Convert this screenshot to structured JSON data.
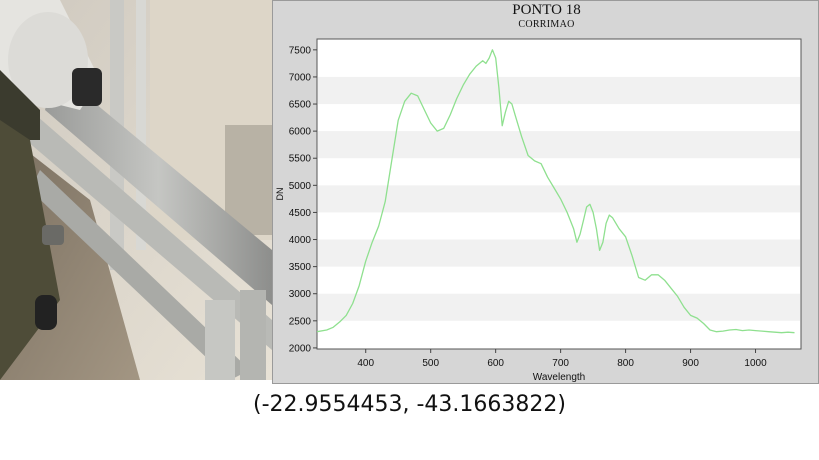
{
  "coordinates_caption": "(-22.9554453, -43.1663822)",
  "photo": {
    "icon": "handrail-photo"
  },
  "chart_data": {
    "type": "line",
    "title": "PONTO 18",
    "subtitle": "CORRIMAO",
    "xlabel": "Wavelength",
    "ylabel": "DN",
    "xlim": [
      325,
      1070
    ],
    "ylim": [
      1980,
      7700
    ],
    "xticks": [
      400,
      500,
      600,
      700,
      800,
      900,
      1000
    ],
    "yticks": [
      2000,
      2500,
      3000,
      3500,
      4000,
      4500,
      5000,
      5500,
      6000,
      6500,
      7000,
      7500
    ],
    "grid": "horizontal bands",
    "line_color": "#8fe08f",
    "series": [
      {
        "x": [
          325,
          340,
          350,
          360,
          370,
          380,
          390,
          400,
          410,
          420,
          430,
          440,
          450,
          460,
          470,
          480,
          490,
          500,
          510,
          520,
          530,
          540,
          550,
          560,
          570,
          580,
          585,
          590,
          595,
          600,
          605,
          610,
          615,
          620,
          625,
          630,
          640,
          650,
          660,
          670,
          680,
          690,
          700,
          710,
          715,
          720,
          725,
          730,
          735,
          740,
          745,
          750,
          755,
          760,
          765,
          770,
          775,
          780,
          790,
          800,
          810,
          820,
          830,
          840,
          850,
          860,
          870,
          880,
          890,
          900,
          910,
          920,
          930,
          940,
          950,
          960,
          970,
          980,
          990,
          1000,
          1010,
          1020,
          1030,
          1040,
          1050,
          1060
        ],
        "y": [
          2300,
          2330,
          2380,
          2480,
          2600,
          2820,
          3150,
          3600,
          3950,
          4250,
          4700,
          5450,
          6200,
          6550,
          6700,
          6650,
          6400,
          6150,
          6000,
          6050,
          6300,
          6600,
          6850,
          7050,
          7200,
          7300,
          7250,
          7350,
          7500,
          7350,
          6800,
          6100,
          6350,
          6550,
          6500,
          6300,
          5900,
          5550,
          5450,
          5400,
          5150,
          4950,
          4750,
          4500,
          4350,
          4200,
          3950,
          4100,
          4350,
          4600,
          4650,
          4500,
          4200,
          3800,
          3950,
          4300,
          4450,
          4400,
          4200,
          4050,
          3700,
          3300,
          3250,
          3350,
          3350,
          3250,
          3100,
          2950,
          2750,
          2600,
          2550,
          2450,
          2330,
          2300,
          2310,
          2330,
          2340,
          2320,
          2330,
          2320,
          2310,
          2300,
          2290,
          2280,
          2290,
          2280
        ]
      }
    ]
  }
}
